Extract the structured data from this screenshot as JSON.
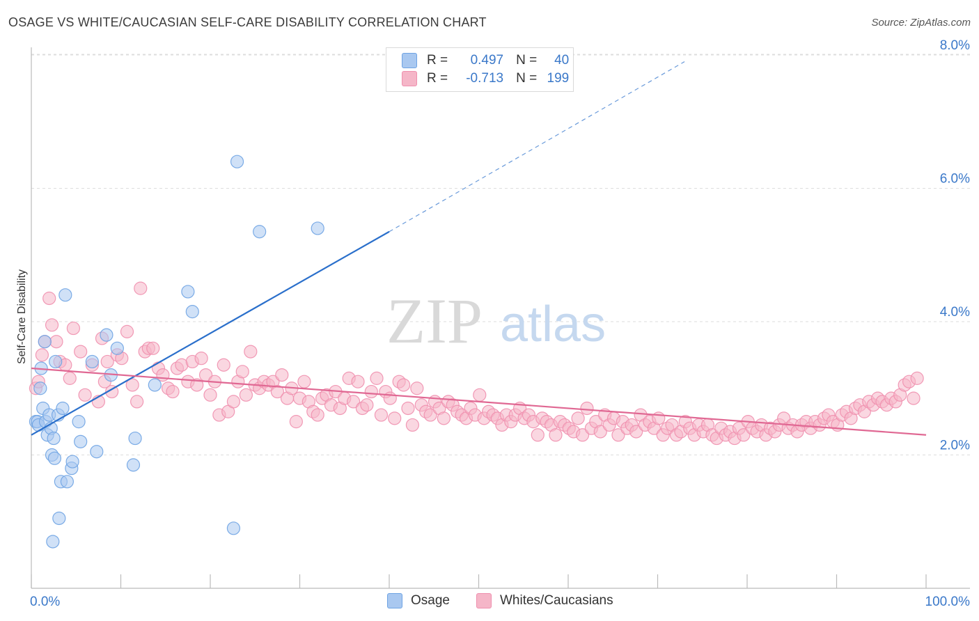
{
  "title": "OSAGE VS WHITE/CAUCASIAN SELF-CARE DISABILITY CORRELATION CHART",
  "source": "Source: ZipAtlas.com",
  "watermark": {
    "zip": "ZIP",
    "atlas": "atlas"
  },
  "legend": {
    "r_label": "R =",
    "n_label": "N =",
    "rows": [
      {
        "r": "0.497",
        "n": "40",
        "color": "#a9c8f0"
      },
      {
        "r": "-0.713",
        "n": "199",
        "color": "#f5b6c8"
      }
    ]
  },
  "bottom_legend": [
    {
      "label": "Osage",
      "color": "#a9c8f0"
    },
    {
      "label": "Whites/Caucasians",
      "color": "#f5b6c8"
    }
  ],
  "chart_data": {
    "type": "scatter",
    "title": "OSAGE VS WHITE/CAUCASIAN SELF-CARE DISABILITY CORRELATION CHART",
    "xlabel": "",
    "ylabel": "Self-Care Disability",
    "xlim": [
      0,
      100
    ],
    "ylim": [
      0,
      8.0
    ],
    "x_tick_labels": [
      "0.0%",
      "100.0%"
    ],
    "y_ticks": [
      2.0,
      4.0,
      6.0,
      8.0
    ],
    "y_tick_labels": [
      "2.0%",
      "4.0%",
      "6.0%",
      "8.0%"
    ],
    "grid": true,
    "series": [
      {
        "name": "Osage",
        "color": "#6ea3e3",
        "fill": "#a9c8f0",
        "line_color": "#2a6fcb",
        "trend": {
          "x0": 0,
          "y0": 2.3,
          "x1": 40,
          "y1": 5.35,
          "dash_to_x": 73,
          "dash_to_y": 7.9
        },
        "points": [
          [
            0.5,
            2.5
          ],
          [
            0.7,
            2.5
          ],
          [
            0.8,
            2.45
          ],
          [
            1.0,
            3.0
          ],
          [
            1.1,
            3.3
          ],
          [
            1.3,
            2.7
          ],
          [
            1.5,
            3.7
          ],
          [
            1.6,
            2.5
          ],
          [
            1.8,
            2.3
          ],
          [
            2.0,
            2.6
          ],
          [
            2.2,
            2.4
          ],
          [
            2.3,
            2.0
          ],
          [
            2.5,
            2.25
          ],
          [
            2.6,
            1.95
          ],
          [
            2.4,
            0.7
          ],
          [
            2.7,
            3.4
          ],
          [
            3.0,
            2.6
          ],
          [
            3.1,
            1.05
          ],
          [
            3.3,
            1.6
          ],
          [
            3.5,
            2.7
          ],
          [
            3.8,
            4.4
          ],
          [
            4.0,
            1.6
          ],
          [
            4.5,
            1.8
          ],
          [
            4.6,
            1.9
          ],
          [
            5.3,
            2.5
          ],
          [
            5.5,
            2.2
          ],
          [
            6.8,
            3.4
          ],
          [
            7.3,
            2.05
          ],
          [
            8.4,
            3.8
          ],
          [
            8.9,
            3.2
          ],
          [
            9.6,
            3.6
          ],
          [
            11.4,
            1.85
          ],
          [
            11.6,
            2.25
          ],
          [
            13.8,
            3.05
          ],
          [
            17.5,
            4.45
          ],
          [
            18.0,
            4.15
          ],
          [
            22.6,
            0.9
          ],
          [
            23.0,
            6.4
          ],
          [
            25.5,
            5.35
          ],
          [
            32.0,
            5.4
          ]
        ]
      },
      {
        "name": "Whites/Caucasians",
        "color": "#ef8fae",
        "fill": "#f5b6c8",
        "line_color": "#e06893",
        "trend": {
          "x0": 0,
          "y0": 3.3,
          "x1": 100,
          "y1": 2.3
        },
        "points": [
          [
            0.5,
            3.0
          ],
          [
            0.8,
            3.1
          ],
          [
            1.2,
            3.5
          ],
          [
            1.5,
            3.7
          ],
          [
            2.0,
            4.35
          ],
          [
            2.3,
            3.95
          ],
          [
            2.8,
            3.7
          ],
          [
            3.2,
            3.4
          ],
          [
            3.8,
            3.35
          ],
          [
            4.3,
            3.15
          ],
          [
            4.7,
            3.9
          ],
          [
            5.5,
            3.55
          ],
          [
            6.0,
            2.9
          ],
          [
            6.8,
            3.35
          ],
          [
            7.5,
            2.8
          ],
          [
            7.9,
            3.75
          ],
          [
            8.2,
            3.1
          ],
          [
            8.5,
            3.4
          ],
          [
            9.0,
            2.95
          ],
          [
            9.6,
            3.5
          ],
          [
            10.1,
            3.45
          ],
          [
            10.7,
            3.85
          ],
          [
            11.3,
            3.05
          ],
          [
            11.8,
            2.8
          ],
          [
            12.2,
            4.5
          ],
          [
            12.7,
            3.55
          ],
          [
            13.1,
            3.6
          ],
          [
            13.6,
            3.6
          ],
          [
            14.2,
            3.3
          ],
          [
            14.7,
            3.2
          ],
          [
            15.3,
            3.0
          ],
          [
            15.8,
            2.95
          ],
          [
            16.3,
            3.3
          ],
          [
            16.8,
            3.35
          ],
          [
            17.5,
            3.1
          ],
          [
            18.0,
            3.4
          ],
          [
            18.5,
            3.05
          ],
          [
            19.0,
            3.45
          ],
          [
            19.5,
            3.2
          ],
          [
            20.0,
            2.9
          ],
          [
            20.5,
            3.1
          ],
          [
            21.0,
            2.6
          ],
          [
            21.5,
            3.35
          ],
          [
            22.0,
            2.65
          ],
          [
            22.6,
            2.8
          ],
          [
            23.1,
            3.1
          ],
          [
            23.6,
            3.25
          ],
          [
            24.0,
            2.9
          ],
          [
            24.5,
            3.55
          ],
          [
            25.0,
            3.05
          ],
          [
            25.5,
            3.0
          ],
          [
            26.0,
            3.1
          ],
          [
            26.5,
            3.05
          ],
          [
            27.0,
            3.1
          ],
          [
            27.5,
            2.95
          ],
          [
            28.0,
            3.2
          ],
          [
            28.6,
            2.85
          ],
          [
            29.1,
            3.0
          ],
          [
            29.6,
            2.5
          ],
          [
            30.0,
            2.85
          ],
          [
            30.5,
            3.1
          ],
          [
            31.0,
            2.8
          ],
          [
            31.5,
            2.65
          ],
          [
            32.0,
            2.6
          ],
          [
            32.5,
            2.85
          ],
          [
            33.0,
            2.9
          ],
          [
            33.5,
            2.75
          ],
          [
            34.0,
            2.95
          ],
          [
            34.5,
            2.7
          ],
          [
            35.0,
            2.85
          ],
          [
            35.5,
            3.15
          ],
          [
            36.0,
            2.8
          ],
          [
            36.5,
            3.1
          ],
          [
            37.0,
            2.7
          ],
          [
            37.5,
            2.75
          ],
          [
            38.0,
            2.95
          ],
          [
            38.6,
            3.15
          ],
          [
            39.1,
            2.6
          ],
          [
            39.6,
            2.95
          ],
          [
            40.1,
            2.85
          ],
          [
            40.6,
            2.55
          ],
          [
            41.1,
            3.1
          ],
          [
            41.6,
            3.05
          ],
          [
            42.1,
            2.7
          ],
          [
            42.6,
            2.45
          ],
          [
            43.1,
            3.0
          ],
          [
            43.6,
            2.75
          ],
          [
            44.1,
            2.65
          ],
          [
            44.6,
            2.6
          ],
          [
            45.1,
            2.8
          ],
          [
            45.6,
            2.7
          ],
          [
            46.1,
            2.55
          ],
          [
            46.6,
            2.8
          ],
          [
            47.1,
            2.75
          ],
          [
            47.6,
            2.65
          ],
          [
            48.1,
            2.6
          ],
          [
            48.6,
            2.55
          ],
          [
            49.1,
            2.7
          ],
          [
            49.6,
            2.6
          ],
          [
            50.1,
            2.9
          ],
          [
            50.6,
            2.55
          ],
          [
            51.1,
            2.65
          ],
          [
            51.6,
            2.6
          ],
          [
            52.1,
            2.55
          ],
          [
            52.6,
            2.45
          ],
          [
            53.1,
            2.6
          ],
          [
            53.6,
            2.5
          ],
          [
            54.1,
            2.6
          ],
          [
            54.6,
            2.7
          ],
          [
            55.1,
            2.55
          ],
          [
            55.6,
            2.6
          ],
          [
            56.1,
            2.5
          ],
          [
            56.6,
            2.3
          ],
          [
            57.1,
            2.55
          ],
          [
            57.6,
            2.5
          ],
          [
            58.1,
            2.45
          ],
          [
            58.6,
            2.3
          ],
          [
            59.1,
            2.5
          ],
          [
            59.6,
            2.45
          ],
          [
            60.1,
            2.4
          ],
          [
            60.6,
            2.35
          ],
          [
            61.1,
            2.55
          ],
          [
            61.6,
            2.3
          ],
          [
            62.1,
            2.7
          ],
          [
            62.6,
            2.4
          ],
          [
            63.1,
            2.5
          ],
          [
            63.6,
            2.35
          ],
          [
            64.1,
            2.6
          ],
          [
            64.6,
            2.45
          ],
          [
            65.1,
            2.55
          ],
          [
            65.6,
            2.3
          ],
          [
            66.1,
            2.5
          ],
          [
            66.6,
            2.4
          ],
          [
            67.1,
            2.45
          ],
          [
            67.6,
            2.35
          ],
          [
            68.1,
            2.6
          ],
          [
            68.6,
            2.45
          ],
          [
            69.1,
            2.5
          ],
          [
            69.6,
            2.4
          ],
          [
            70.1,
            2.55
          ],
          [
            70.6,
            2.3
          ],
          [
            71.1,
            2.4
          ],
          [
            71.6,
            2.45
          ],
          [
            72.1,
            2.3
          ],
          [
            72.6,
            2.35
          ],
          [
            73.1,
            2.5
          ],
          [
            73.6,
            2.4
          ],
          [
            74.1,
            2.3
          ],
          [
            74.6,
            2.45
          ],
          [
            75.1,
            2.35
          ],
          [
            75.6,
            2.45
          ],
          [
            76.1,
            2.3
          ],
          [
            76.6,
            2.25
          ],
          [
            77.1,
            2.4
          ],
          [
            77.6,
            2.3
          ],
          [
            78.1,
            2.35
          ],
          [
            78.6,
            2.25
          ],
          [
            79.1,
            2.4
          ],
          [
            79.6,
            2.3
          ],
          [
            80.1,
            2.5
          ],
          [
            80.6,
            2.4
          ],
          [
            81.1,
            2.35
          ],
          [
            81.6,
            2.45
          ],
          [
            82.1,
            2.3
          ],
          [
            82.6,
            2.4
          ],
          [
            83.1,
            2.35
          ],
          [
            83.6,
            2.45
          ],
          [
            84.1,
            2.55
          ],
          [
            84.6,
            2.4
          ],
          [
            85.1,
            2.45
          ],
          [
            85.6,
            2.35
          ],
          [
            86.1,
            2.45
          ],
          [
            86.6,
            2.5
          ],
          [
            87.1,
            2.4
          ],
          [
            87.6,
            2.5
          ],
          [
            88.1,
            2.45
          ],
          [
            88.6,
            2.55
          ],
          [
            89.1,
            2.6
          ],
          [
            89.6,
            2.5
          ],
          [
            90.1,
            2.45
          ],
          [
            90.6,
            2.6
          ],
          [
            91.1,
            2.65
          ],
          [
            91.6,
            2.55
          ],
          [
            92.1,
            2.7
          ],
          [
            92.6,
            2.75
          ],
          [
            93.1,
            2.65
          ],
          [
            93.6,
            2.8
          ],
          [
            94.1,
            2.75
          ],
          [
            94.6,
            2.85
          ],
          [
            95.1,
            2.8
          ],
          [
            95.6,
            2.75
          ],
          [
            96.1,
            2.85
          ],
          [
            96.6,
            2.8
          ],
          [
            97.1,
            2.9
          ],
          [
            97.6,
            3.05
          ],
          [
            98.1,
            3.1
          ],
          [
            98.6,
            2.85
          ],
          [
            99.0,
            3.15
          ]
        ]
      }
    ]
  }
}
